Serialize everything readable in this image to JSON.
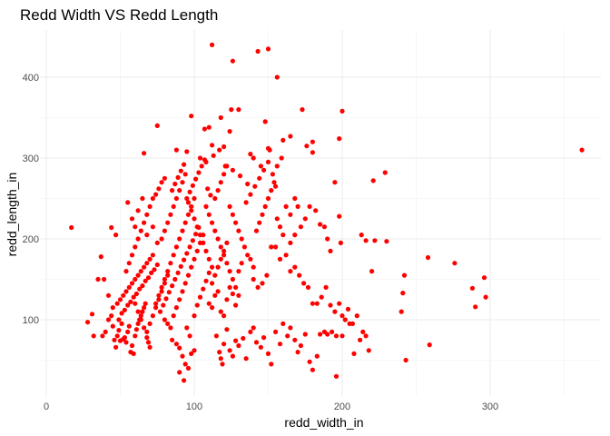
{
  "chart_data": {
    "type": "scatter",
    "title": "Redd Width VS Redd Length",
    "xlabel": "redd_width_in",
    "ylabel": "redd_length_in",
    "xlim": [
      0,
      370
    ],
    "ylim": [
      15,
      452
    ],
    "x_ticks": [
      0,
      100,
      200,
      300
    ],
    "x_tick_labels": [
      "0",
      "100",
      "200",
      "300"
    ],
    "y_ticks": [
      100,
      200,
      300,
      400
    ],
    "y_tick_labels": [
      "100",
      "200",
      "300",
      "400"
    ],
    "grid": true,
    "legend": "none",
    "point_color": "#ff0000",
    "points": [
      [
        112,
        440
      ],
      [
        150,
        435
      ],
      [
        143,
        432
      ],
      [
        126,
        420
      ],
      [
        156,
        400
      ],
      [
        125,
        360
      ],
      [
        130,
        360
      ],
      [
        173,
        360
      ],
      [
        200,
        358
      ],
      [
        98,
        352
      ],
      [
        118,
        350
      ],
      [
        75,
        340
      ],
      [
        110,
        338
      ],
      [
        107,
        336
      ],
      [
        160,
        322
      ],
      [
        165,
        327
      ],
      [
        180,
        320
      ],
      [
        198,
        324
      ],
      [
        124,
        333
      ],
      [
        148,
        345
      ],
      [
        112,
        316
      ],
      [
        120,
        314
      ],
      [
        95,
        308
      ],
      [
        88,
        310
      ],
      [
        66,
        306
      ],
      [
        138,
        305
      ],
      [
        151,
        310
      ],
      [
        176,
        315
      ],
      [
        180,
        307
      ],
      [
        229,
        282
      ],
      [
        221,
        272
      ],
      [
        362,
        310
      ],
      [
        17,
        214
      ],
      [
        28,
        97
      ],
      [
        31,
        107
      ],
      [
        32,
        80
      ],
      [
        35,
        150
      ],
      [
        37,
        178
      ],
      [
        39,
        150
      ],
      [
        42,
        130
      ],
      [
        44,
        214
      ],
      [
        47,
        205
      ],
      [
        38,
        80
      ],
      [
        40,
        85
      ],
      [
        42,
        100
      ],
      [
        44,
        105
      ],
      [
        45,
        92
      ],
      [
        46,
        75
      ],
      [
        47,
        66
      ],
      [
        48,
        80
      ],
      [
        49,
        87
      ],
      [
        50,
        74
      ],
      [
        51,
        95
      ],
      [
        52,
        76
      ],
      [
        53,
        78
      ],
      [
        54,
        72
      ],
      [
        55,
        85
      ],
      [
        56,
        92
      ],
      [
        57,
        60
      ],
      [
        58,
        68
      ],
      [
        59,
        58
      ],
      [
        60,
        80
      ],
      [
        61,
        88
      ],
      [
        62,
        95
      ],
      [
        63,
        100
      ],
      [
        64,
        105
      ],
      [
        65,
        110
      ],
      [
        66,
        115
      ],
      [
        67,
        120
      ],
      [
        68,
        78
      ],
      [
        69,
        72
      ],
      [
        70,
        66
      ],
      [
        45,
        115
      ],
      [
        48,
        120
      ],
      [
        50,
        125
      ],
      [
        52,
        130
      ],
      [
        54,
        135
      ],
      [
        56,
        140
      ],
      [
        58,
        145
      ],
      [
        60,
        150
      ],
      [
        62,
        155
      ],
      [
        64,
        160
      ],
      [
        66,
        165
      ],
      [
        68,
        170
      ],
      [
        70,
        175
      ],
      [
        72,
        180
      ],
      [
        49,
        100
      ],
      [
        51,
        108
      ],
      [
        53,
        112
      ],
      [
        55,
        118
      ],
      [
        57,
        122
      ],
      [
        59,
        128
      ],
      [
        61,
        132
      ],
      [
        63,
        138
      ],
      [
        65,
        142
      ],
      [
        67,
        148
      ],
      [
        69,
        152
      ],
      [
        71,
        158
      ],
      [
        73,
        162
      ],
      [
        75,
        168
      ],
      [
        54,
        160
      ],
      [
        56,
        170
      ],
      [
        58,
        180
      ],
      [
        60,
        190
      ],
      [
        62,
        200
      ],
      [
        64,
        210
      ],
      [
        66,
        220
      ],
      [
        68,
        230
      ],
      [
        70,
        240
      ],
      [
        72,
        250
      ],
      [
        74,
        255
      ],
      [
        76,
        262
      ],
      [
        78,
        270
      ],
      [
        80,
        275
      ],
      [
        55,
        245
      ],
      [
        58,
        225
      ],
      [
        60,
        215
      ],
      [
        62,
        235
      ],
      [
        65,
        250
      ],
      [
        68,
        205
      ],
      [
        72,
        215
      ],
      [
        75,
        195
      ],
      [
        78,
        200
      ],
      [
        80,
        210
      ],
      [
        82,
        220
      ],
      [
        84,
        230
      ],
      [
        86,
        240
      ],
      [
        88,
        250
      ],
      [
        90,
        260
      ],
      [
        92,
        270
      ],
      [
        94,
        280
      ],
      [
        96,
        245
      ],
      [
        98,
        235
      ],
      [
        100,
        225
      ],
      [
        102,
        215
      ],
      [
        104,
        205
      ],
      [
        106,
        195
      ],
      [
        108,
        185
      ],
      [
        110,
        175
      ],
      [
        112,
        165
      ],
      [
        74,
        120
      ],
      [
        76,
        130
      ],
      [
        78,
        140
      ],
      [
        80,
        150
      ],
      [
        82,
        160
      ],
      [
        84,
        170
      ],
      [
        86,
        180
      ],
      [
        88,
        190
      ],
      [
        90,
        200
      ],
      [
        92,
        210
      ],
      [
        94,
        220
      ],
      [
        96,
        230
      ],
      [
        98,
        240
      ],
      [
        100,
        250
      ],
      [
        77,
        110
      ],
      [
        79,
        118
      ],
      [
        81,
        126
      ],
      [
        83,
        134
      ],
      [
        85,
        142
      ],
      [
        87,
        150
      ],
      [
        89,
        158
      ],
      [
        91,
        166
      ],
      [
        93,
        174
      ],
      [
        95,
        182
      ],
      [
        97,
        190
      ],
      [
        99,
        198
      ],
      [
        101,
        206
      ],
      [
        103,
        214
      ],
      [
        80,
        100
      ],
      [
        82,
        95
      ],
      [
        84,
        90
      ],
      [
        86,
        105
      ],
      [
        88,
        115
      ],
      [
        90,
        125
      ],
      [
        92,
        135
      ],
      [
        94,
        145
      ],
      [
        96,
        155
      ],
      [
        98,
        165
      ],
      [
        100,
        175
      ],
      [
        102,
        185
      ],
      [
        104,
        195
      ],
      [
        106,
        205
      ],
      [
        85,
        260
      ],
      [
        87,
        268
      ],
      [
        89,
        276
      ],
      [
        91,
        284
      ],
      [
        93,
        292
      ],
      [
        95,
        250
      ],
      [
        97,
        258
      ],
      [
        99,
        266
      ],
      [
        101,
        274
      ],
      [
        103,
        282
      ],
      [
        105,
        290
      ],
      [
        107,
        298
      ],
      [
        109,
        262
      ],
      [
        111,
        254
      ],
      [
        108,
        240
      ],
      [
        110,
        230
      ],
      [
        112,
        220
      ],
      [
        114,
        210
      ],
      [
        116,
        200
      ],
      [
        118,
        190
      ],
      [
        120,
        180
      ],
      [
        122,
        170
      ],
      [
        124,
        160
      ],
      [
        126,
        150
      ],
      [
        128,
        140
      ],
      [
        130,
        130
      ],
      [
        114,
        250
      ],
      [
        116,
        260
      ],
      [
        118,
        270
      ],
      [
        120,
        280
      ],
      [
        122,
        290
      ],
      [
        124,
        240
      ],
      [
        126,
        230
      ],
      [
        128,
        220
      ],
      [
        130,
        210
      ],
      [
        132,
        200
      ],
      [
        134,
        190
      ],
      [
        136,
        180
      ],
      [
        138,
        175
      ],
      [
        140,
        165
      ],
      [
        142,
        210
      ],
      [
        144,
        220
      ],
      [
        146,
        230
      ],
      [
        148,
        240
      ],
      [
        150,
        250
      ],
      [
        152,
        260
      ],
      [
        154,
        270
      ],
      [
        156,
        225
      ],
      [
        158,
        215
      ],
      [
        160,
        205
      ],
      [
        135,
        245
      ],
      [
        138,
        255
      ],
      [
        141,
        265
      ],
      [
        144,
        275
      ],
      [
        147,
        285
      ],
      [
        150,
        295
      ],
      [
        153,
        280
      ],
      [
        156,
        290
      ],
      [
        159,
        300
      ],
      [
        162,
        240
      ],
      [
        165,
        230
      ],
      [
        168,
        250
      ],
      [
        140,
        150
      ],
      [
        143,
        140
      ],
      [
        146,
        145
      ],
      [
        149,
        155
      ],
      [
        152,
        190
      ],
      [
        155,
        190
      ],
      [
        158,
        175
      ],
      [
        162,
        180
      ],
      [
        165,
        195
      ],
      [
        168,
        205
      ],
      [
        172,
        215
      ],
      [
        175,
        225
      ],
      [
        170,
        240
      ],
      [
        178,
        240
      ],
      [
        182,
        235
      ],
      [
        185,
        218
      ],
      [
        188,
        215
      ],
      [
        190,
        200
      ],
      [
        192,
        185
      ],
      [
        195,
        270
      ],
      [
        198,
        228
      ],
      [
        199,
        195
      ],
      [
        110,
        120
      ],
      [
        112,
        115
      ],
      [
        114,
        130
      ],
      [
        116,
        135
      ],
      [
        118,
        110
      ],
      [
        120,
        105
      ],
      [
        122,
        125
      ],
      [
        124,
        140
      ],
      [
        126,
        132
      ],
      [
        128,
        118
      ],
      [
        130,
        160
      ],
      [
        132,
        170
      ],
      [
        100,
        105
      ],
      [
        102,
        118
      ],
      [
        104,
        128
      ],
      [
        106,
        138
      ],
      [
        108,
        148
      ],
      [
        110,
        158
      ],
      [
        112,
        145
      ],
      [
        114,
        155
      ],
      [
        116,
        165
      ],
      [
        118,
        175
      ],
      [
        120,
        185
      ],
      [
        122,
        195
      ],
      [
        60,
        120
      ],
      [
        62,
        110
      ],
      [
        64,
        100
      ],
      [
        66,
        90
      ],
      [
        68,
        85
      ],
      [
        70,
        95
      ],
      [
        72,
        105
      ],
      [
        74,
        115
      ],
      [
        76,
        125
      ],
      [
        78,
        135
      ],
      [
        80,
        145
      ],
      [
        82,
        155
      ],
      [
        85,
        75
      ],
      [
        88,
        70
      ],
      [
        90,
        65
      ],
      [
        92,
        55
      ],
      [
        94,
        45
      ],
      [
        96,
        40
      ],
      [
        90,
        35
      ],
      [
        93,
        25
      ],
      [
        98,
        58
      ],
      [
        100,
        62
      ],
      [
        97,
        80
      ],
      [
        95,
        90
      ],
      [
        115,
        80
      ],
      [
        117,
        60
      ],
      [
        118,
        52
      ],
      [
        119,
        45
      ],
      [
        120,
        70
      ],
      [
        122,
        88
      ],
      [
        124,
        62
      ],
      [
        126,
        55
      ],
      [
        128,
        74
      ],
      [
        130,
        68
      ],
      [
        133,
        77
      ],
      [
        135,
        52
      ],
      [
        138,
        85
      ],
      [
        140,
        90
      ],
      [
        142,
        72
      ],
      [
        145,
        66
      ],
      [
        147,
        78
      ],
      [
        150,
        58
      ],
      [
        152,
        45
      ],
      [
        155,
        85
      ],
      [
        158,
        70
      ],
      [
        160,
        95
      ],
      [
        163,
        80
      ],
      [
        165,
        90
      ],
      [
        168,
        75
      ],
      [
        170,
        60
      ],
      [
        172,
        68
      ],
      [
        175,
        82
      ],
      [
        178,
        48
      ],
      [
        180,
        38
      ],
      [
        183,
        55
      ],
      [
        185,
        82
      ],
      [
        188,
        85
      ],
      [
        190,
        82
      ],
      [
        193,
        85
      ],
      [
        196,
        30
      ],
      [
        196,
        80
      ],
      [
        200,
        80
      ],
      [
        202,
        100
      ],
      [
        205,
        95
      ],
      [
        208,
        58
      ],
      [
        210,
        105
      ],
      [
        212,
        75
      ],
      [
        214,
        85
      ],
      [
        216,
        80
      ],
      [
        218,
        62
      ],
      [
        220,
        160
      ],
      [
        222,
        198
      ],
      [
        165,
        160
      ],
      [
        168,
        165
      ],
      [
        171,
        155
      ],
      [
        174,
        145
      ],
      [
        177,
        140
      ],
      [
        180,
        120
      ],
      [
        183,
        120
      ],
      [
        186,
        128
      ],
      [
        189,
        140
      ],
      [
        192,
        118
      ],
      [
        195,
        110
      ],
      [
        198,
        120
      ],
      [
        200,
        105
      ],
      [
        204,
        113
      ],
      [
        207,
        95
      ],
      [
        213,
        205
      ],
      [
        216,
        198
      ],
      [
        230,
        197
      ],
      [
        240,
        110
      ],
      [
        241,
        133
      ],
      [
        242,
        155
      ],
      [
        243,
        50
      ],
      [
        258,
        177
      ],
      [
        259,
        69
      ],
      [
        276,
        170
      ],
      [
        288,
        139
      ],
      [
        290,
        116
      ],
      [
        296,
        152
      ],
      [
        297,
        128
      ],
      [
        104,
        300
      ],
      [
        108,
        295
      ],
      [
        113,
        303
      ],
      [
        117,
        310
      ],
      [
        121,
        290
      ],
      [
        126,
        285
      ],
      [
        131,
        278
      ],
      [
        136,
        268
      ],
      [
        140,
        300
      ],
      [
        145,
        290
      ],
      [
        150,
        312
      ],
      [
        155,
        265
      ]
    ]
  }
}
